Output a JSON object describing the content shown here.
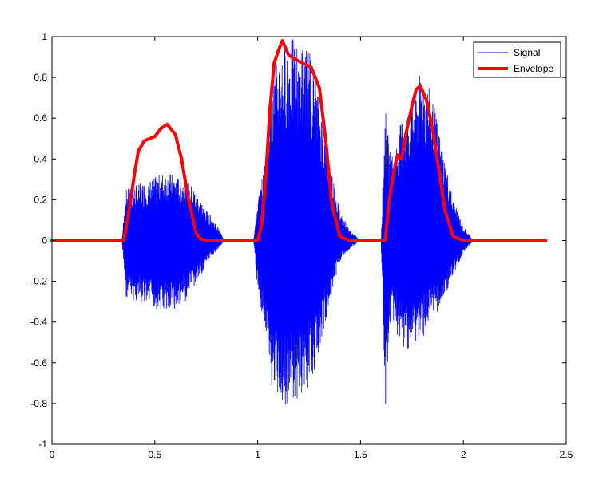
{
  "chart_data": {
    "type": "line",
    "title": "",
    "xlabel": "",
    "ylabel": "",
    "xlim": [
      0,
      2.5
    ],
    "ylim": [
      -1,
      1
    ],
    "xticks": [
      0,
      0.5,
      1,
      1.5,
      2,
      2.5
    ],
    "xtick_labels": [
      "0",
      "0.5",
      "1",
      "1.5",
      "2",
      "2.5"
    ],
    "yticks": [
      -1,
      -0.8,
      -0.6,
      -0.4,
      -0.2,
      0,
      0.2,
      0.4,
      0.6,
      0.8,
      1
    ],
    "ytick_labels": [
      "-1",
      "-0.8",
      "-0.6",
      "-0.4",
      "-0.2",
      "0",
      "0.2",
      "0.4",
      "0.6",
      "0.8",
      "1"
    ],
    "grid": false,
    "legend_position": "top-right",
    "series": [
      {
        "name": "Signal",
        "color": "#0000ff",
        "style": "thin-oscillating",
        "x_range": [
          0,
          2.4
        ],
        "amplitude_envelope": {
          "x": [
            0,
            0.34,
            0.36,
            0.4,
            0.45,
            0.5,
            0.55,
            0.6,
            0.65,
            0.7,
            0.75,
            0.8,
            0.84,
            0.98,
            1.0,
            1.03,
            1.06,
            1.1,
            1.15,
            1.2,
            1.25,
            1.3,
            1.35,
            1.4,
            1.45,
            1.5,
            1.6,
            1.62,
            1.64,
            1.66,
            1.7,
            1.75,
            1.8,
            1.85,
            1.9,
            1.95,
            2.0,
            2.05,
            2.4
          ],
          "pos": [
            0,
            0,
            0.25,
            0.27,
            0.29,
            0.31,
            0.34,
            0.32,
            0.3,
            0.25,
            0.15,
            0.08,
            0,
            0,
            0.2,
            0.35,
            0.75,
            0.93,
            1.0,
            0.98,
            0.95,
            0.7,
            0.4,
            0.15,
            0.05,
            0,
            0,
            0.66,
            0.45,
            0.42,
            0.6,
            0.7,
            0.85,
            0.7,
            0.45,
            0.2,
            0.07,
            0,
            0
          ],
          "neg": [
            0,
            0,
            -0.28,
            -0.3,
            -0.32,
            -0.34,
            -0.35,
            -0.34,
            -0.3,
            -0.22,
            -0.12,
            -0.05,
            0,
            0,
            -0.25,
            -0.4,
            -0.7,
            -0.8,
            -0.82,
            -0.78,
            -0.72,
            -0.55,
            -0.3,
            -0.1,
            -0.04,
            0,
            0,
            -0.89,
            -0.45,
            -0.4,
            -0.55,
            -0.52,
            -0.48,
            -0.4,
            -0.3,
            -0.18,
            -0.06,
            0,
            0
          ]
        }
      },
      {
        "name": "Envelope",
        "color": "#ff0000",
        "style": "thick",
        "x": [
          0,
          0.35,
          0.38,
          0.4,
          0.42,
          0.45,
          0.5,
          0.53,
          0.56,
          0.6,
          0.63,
          0.66,
          0.7,
          0.72,
          0.75,
          1.0,
          1.02,
          1.04,
          1.06,
          1.08,
          1.1,
          1.12,
          1.15,
          1.18,
          1.22,
          1.26,
          1.3,
          1.33,
          1.36,
          1.4,
          1.45,
          1.62,
          1.64,
          1.66,
          1.68,
          1.7,
          1.72,
          1.75,
          1.77,
          1.79,
          1.82,
          1.85,
          1.88,
          1.91,
          1.95,
          2.0,
          2.4
        ],
        "y": [
          0,
          0,
          0.18,
          0.32,
          0.44,
          0.49,
          0.51,
          0.55,
          0.57,
          0.52,
          0.4,
          0.22,
          0.04,
          0.01,
          0,
          0,
          0.08,
          0.32,
          0.65,
          0.87,
          0.93,
          0.98,
          0.91,
          0.89,
          0.87,
          0.85,
          0.75,
          0.5,
          0.18,
          0.02,
          0,
          0,
          0.2,
          0.33,
          0.42,
          0.4,
          0.52,
          0.66,
          0.74,
          0.76,
          0.69,
          0.55,
          0.35,
          0.15,
          0.02,
          0,
          0
        ]
      }
    ]
  },
  "legend": {
    "entries": [
      {
        "label": "Signal",
        "color": "#0000ff"
      },
      {
        "label": "Envelope",
        "color": "#ff0000"
      }
    ]
  }
}
